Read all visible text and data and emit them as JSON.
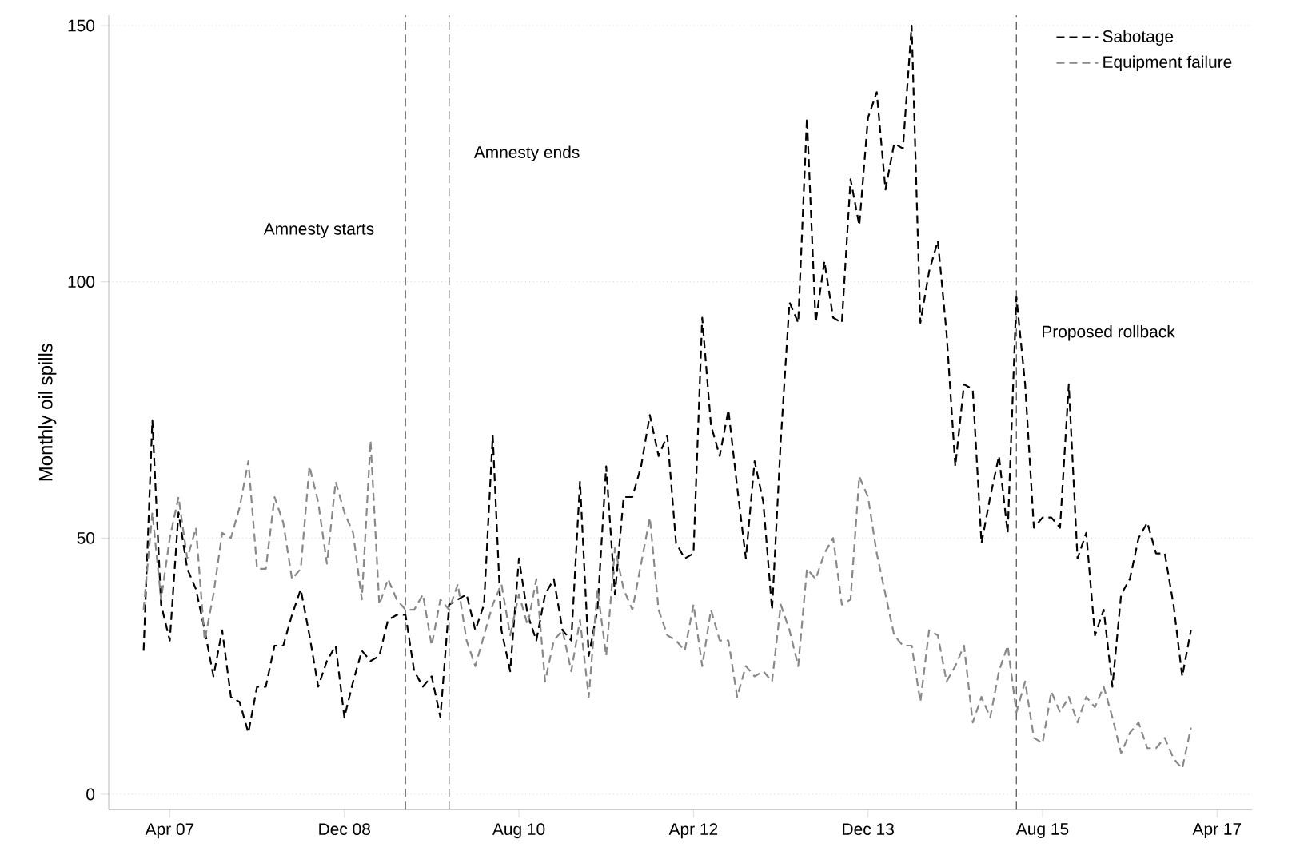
{
  "chart_data": {
    "type": "line",
    "ylabel": "Monthly oil spills",
    "x": [
      "2007-01",
      "2007-02",
      "2007-03",
      "2007-04",
      "2007-05",
      "2007-06",
      "2007-07",
      "2007-08",
      "2007-09",
      "2007-10",
      "2007-11",
      "2007-12",
      "2008-01",
      "2008-02",
      "2008-03",
      "2008-04",
      "2008-05",
      "2008-06",
      "2008-07",
      "2008-08",
      "2008-09",
      "2008-10",
      "2008-11",
      "2008-12",
      "2009-01",
      "2009-02",
      "2009-03",
      "2009-04",
      "2009-05",
      "2009-06",
      "2009-07",
      "2009-08",
      "2009-09",
      "2009-10",
      "2009-11",
      "2009-12",
      "2010-01",
      "2010-02",
      "2010-03",
      "2010-04",
      "2010-05",
      "2010-06",
      "2010-07",
      "2010-08",
      "2010-09",
      "2010-10",
      "2010-11",
      "2010-12",
      "2011-01",
      "2011-02",
      "2011-03",
      "2011-04",
      "2011-05",
      "2011-06",
      "2011-07",
      "2011-08",
      "2011-09",
      "2011-10",
      "2011-11",
      "2011-12",
      "2012-01",
      "2012-02",
      "2012-03",
      "2012-04",
      "2012-05",
      "2012-06",
      "2012-07",
      "2012-08",
      "2012-09",
      "2012-10",
      "2012-11",
      "2012-12",
      "2013-01",
      "2013-02",
      "2013-03",
      "2013-04",
      "2013-05",
      "2013-06",
      "2013-07",
      "2013-08",
      "2013-09",
      "2013-10",
      "2013-11",
      "2013-12",
      "2014-01",
      "2014-02",
      "2014-03",
      "2014-04",
      "2014-05",
      "2014-06",
      "2014-07",
      "2014-08",
      "2014-09",
      "2014-10",
      "2014-11",
      "2014-12",
      "2015-01",
      "2015-02",
      "2015-03",
      "2015-04",
      "2015-05",
      "2015-06",
      "2015-07",
      "2015-08",
      "2015-09",
      "2015-10",
      "2015-11",
      "2015-12",
      "2016-01",
      "2016-02",
      "2016-03",
      "2016-04",
      "2016-05",
      "2016-06",
      "2016-07",
      "2016-08",
      "2016-09",
      "2016-10",
      "2016-11",
      "2016-12",
      "2017-01"
    ],
    "series": [
      {
        "name": "Sabotage",
        "color": "#000000",
        "values": [
          28,
          73,
          37,
          30,
          55,
          44,
          40,
          32,
          23,
          32,
          19,
          18,
          12,
          21,
          21,
          29,
          29,
          35,
          40,
          31,
          21,
          26,
          29,
          15,
          22,
          28,
          26,
          27,
          34,
          35,
          35,
          24,
          21,
          23,
          15,
          37,
          38,
          39,
          32,
          37,
          70,
          32,
          24,
          46,
          35,
          30,
          39,
          42,
          32,
          30,
          61,
          27,
          36,
          64,
          39,
          58,
          58,
          64,
          74,
          66,
          70,
          49,
          46,
          47,
          93,
          72,
          66,
          75,
          60,
          46,
          65,
          57,
          36,
          69,
          96,
          92,
          132,
          92,
          104,
          93,
          92,
          120,
          111,
          132,
          137,
          118,
          127,
          126,
          150,
          92,
          102,
          108,
          90,
          64,
          80,
          79,
          49,
          58,
          66,
          51,
          97,
          80,
          52,
          54,
          54,
          52,
          80,
          46,
          51,
          31,
          36,
          21,
          39,
          42,
          50,
          53,
          47,
          47,
          37,
          23,
          32
        ]
      },
      {
        "name": "Equipment failure",
        "color": "#888888",
        "values": [
          36,
          55,
          38,
          50,
          58,
          46,
          52,
          30,
          39,
          51,
          50,
          56,
          65,
          44,
          44,
          58,
          53,
          42,
          44,
          64,
          57,
          45,
          61,
          55,
          51,
          38,
          69,
          37,
          42,
          38,
          36,
          36,
          39,
          29,
          38,
          36,
          41,
          30,
          25,
          31,
          37,
          41,
          31,
          39,
          33,
          42,
          22,
          30,
          32,
          24,
          34,
          19,
          40,
          27,
          48,
          40,
          36,
          45,
          54,
          36,
          31,
          30,
          28,
          37,
          25,
          36,
          30,
          30,
          19,
          25,
          23,
          24,
          22,
          37,
          32,
          25,
          44,
          42,
          47,
          50,
          37,
          38,
          62,
          58,
          47,
          39,
          31,
          29,
          29,
          18,
          32,
          31,
          22,
          25,
          29,
          14,
          19,
          15,
          24,
          29,
          16,
          22,
          11,
          10,
          20,
          16,
          19,
          14,
          19,
          17,
          21,
          15,
          8,
          12,
          14,
          9,
          9,
          11,
          7,
          5,
          13
        ]
      }
    ],
    "line_style": "dashed",
    "marker": "none",
    "xlim": [
      "2006-09",
      "2017-08"
    ],
    "xticks": [
      {
        "value": "2007-04",
        "label": "Apr 07"
      },
      {
        "value": "2008-12",
        "label": "Dec 08"
      },
      {
        "value": "2010-08",
        "label": "Aug 10"
      },
      {
        "value": "2012-04",
        "label": "Apr 12"
      },
      {
        "value": "2013-12",
        "label": "Dec 13"
      },
      {
        "value": "2015-08",
        "label": "Aug 15"
      },
      {
        "value": "2017-04",
        "label": "Apr 17"
      }
    ],
    "ylim": [
      -3,
      152
    ],
    "yticks": [
      0,
      50,
      100,
      150
    ],
    "grid": "y",
    "legend": "top right",
    "ref_lines": [
      {
        "axis": "x",
        "value": "2009-07",
        "color": "#666666",
        "line_style": "dashed"
      },
      {
        "axis": "x",
        "value": "2009-12",
        "color": "#666666",
        "line_style": "dashed"
      },
      {
        "axis": "x",
        "value": "2015-05",
        "color": "#666666",
        "line_style": "dashed"
      }
    ],
    "annotations": [
      {
        "text": "Amnesty starts",
        "x": "2009-07",
        "y": 110
      },
      {
        "text": "Amnesty ends",
        "x": "2009-12",
        "y": 125
      },
      {
        "text": "Proposed rollback",
        "x": "2015-05",
        "y": 90
      }
    ]
  }
}
